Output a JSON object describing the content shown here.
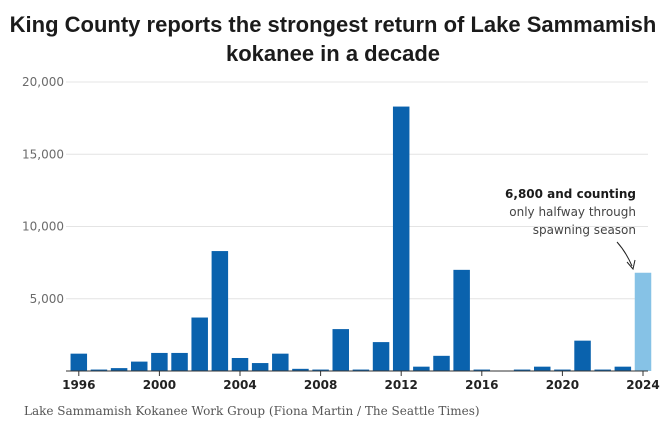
{
  "title": {
    "line1": "King County reports the strongest return of Lake Sammamish",
    "line2": "kokanee in a decade"
  },
  "source": "Lake Sammamish Kokanee Work Group (Fiona Martin / The Seattle Times)",
  "annotation": {
    "bold": "6,800 and counting",
    "line1": "only halfway through",
    "line2": "spawning season"
  },
  "colors": {
    "bar": "#0a62ad",
    "highlight": "#86c2e6",
    "grid": "#e4e4e4",
    "axis": "#333333"
  },
  "chart_data": {
    "type": "bar",
    "title": "King County reports the strongest return of Lake Sammamish kokanee in a decade",
    "xlabel": "",
    "ylabel": "",
    "ylim": [
      0,
      20000
    ],
    "yticks": [
      0,
      5000,
      10000,
      15000,
      20000
    ],
    "ytick_labels": [
      "",
      "5,000",
      "10,000",
      "15,000",
      "20,000"
    ],
    "xtick_labels": [
      "1996",
      "2000",
      "2004",
      "2008",
      "2012",
      "2016",
      "2020",
      "2024"
    ],
    "categories": [
      1996,
      1997,
      1998,
      1999,
      2000,
      2001,
      2002,
      2003,
      2004,
      2005,
      2006,
      2007,
      2008,
      2009,
      2010,
      2011,
      2012,
      2013,
      2014,
      2015,
      2016,
      2017,
      2018,
      2019,
      2020,
      2021,
      2022,
      2023,
      2024
    ],
    "values": [
      1200,
      100,
      200,
      650,
      1250,
      1250,
      3700,
      8300,
      900,
      550,
      1200,
      150,
      100,
      2900,
      100,
      2000,
      18300,
      300,
      1050,
      7000,
      100,
      20,
      100,
      300,
      100,
      2100,
      100,
      300,
      6800
    ],
    "highlight_category": 2024
  }
}
